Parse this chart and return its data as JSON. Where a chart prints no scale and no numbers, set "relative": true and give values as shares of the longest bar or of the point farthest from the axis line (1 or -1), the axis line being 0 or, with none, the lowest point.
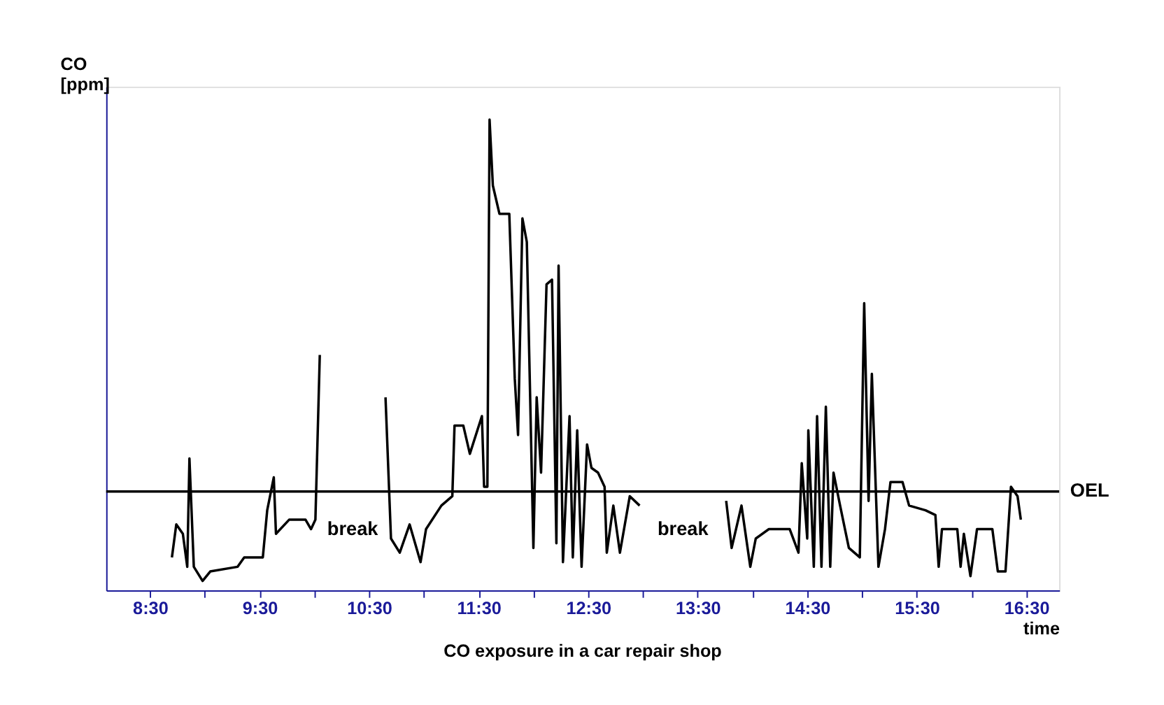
{
  "chart_data": {
    "type": "line",
    "relative": true,
    "title": "CO exposure in a car repair shop",
    "xlabel": "time",
    "ylabel": "CO\n[ppm]",
    "x": [
      8.7,
      8.74,
      8.8,
      8.84,
      8.86,
      8.9,
      8.98,
      9.05,
      9.3,
      9.36,
      9.53,
      9.57,
      9.63,
      9.65,
      9.77,
      9.92,
      9.97,
      10.01,
      10.05,
      10.35,
      10.65,
      10.7,
      10.78,
      10.87,
      10.97,
      11.02,
      11.16,
      11.26,
      11.28,
      11.36,
      11.42,
      11.53,
      11.55,
      11.58,
      11.6,
      11.63,
      11.69,
      11.78,
      11.83,
      11.86,
      11.9,
      11.94,
      12.0,
      12.03,
      12.07,
      12.12,
      12.17,
      12.21,
      12.23,
      12.27,
      12.33,
      12.36,
      12.4,
      12.44,
      12.49,
      12.53,
      12.59,
      12.65,
      12.67,
      12.73,
      12.79,
      12.88,
      12.97,
      13.4,
      13.76,
      13.81,
      13.9,
      13.98,
      14.03,
      14.15,
      14.34,
      14.42,
      14.45,
      14.5,
      14.51,
      14.56,
      14.59,
      14.63,
      14.67,
      14.71,
      14.74,
      14.8,
      14.88,
      14.98,
      15.02,
      15.06,
      15.09,
      15.15,
      15.21,
      15.26,
      15.37,
      15.43,
      15.58,
      15.67,
      15.7,
      15.73,
      15.87,
      15.9,
      15.93,
      15.99,
      16.05,
      16.19,
      16.24,
      16.31,
      16.36,
      16.42,
      16.45
    ],
    "series": [
      {
        "color": "#000000",
        "values": [
          0.07,
          0.14,
          0.12,
          0.05,
          0.28,
          0.05,
          0.02,
          0.04,
          0.05,
          0.07,
          0.07,
          0.17,
          0.24,
          0.12,
          0.15,
          0.15,
          0.13,
          0.15,
          0.5,
          null,
          0.41,
          0.11,
          0.08,
          0.14,
          0.06,
          0.13,
          0.18,
          0.2,
          0.35,
          0.35,
          0.29,
          0.37,
          0.22,
          0.22,
          1.0,
          0.86,
          0.8,
          0.8,
          0.45,
          0.33,
          0.79,
          0.74,
          0.09,
          0.41,
          0.25,
          0.65,
          0.66,
          0.1,
          0.69,
          0.06,
          0.37,
          0.07,
          0.34,
          0.05,
          0.31,
          0.26,
          0.25,
          0.22,
          0.08,
          0.18,
          0.08,
          0.2,
          0.18,
          null,
          0.19,
          0.09,
          0.18,
          0.05,
          0.11,
          0.13,
          0.13,
          0.08,
          0.27,
          0.11,
          0.34,
          0.05,
          0.37,
          0.05,
          0.39,
          0.05,
          0.25,
          0.18,
          0.09,
          0.07,
          0.61,
          0.19,
          0.46,
          0.05,
          0.13,
          0.23,
          0.23,
          0.18,
          0.17,
          0.16,
          0.05,
          0.13,
          0.13,
          0.05,
          0.12,
          0.03,
          0.13,
          0.13,
          0.04,
          0.04,
          0.22,
          0.2,
          0.15
        ]
      }
    ],
    "xlim": [
      8.1,
      16.8
    ],
    "xticks": [
      {
        "value": 8.5,
        "label": "8:30"
      },
      {
        "value": 9,
        "label": null
      },
      {
        "value": 9.5,
        "label": "9:30"
      },
      {
        "value": 10,
        "label": null
      },
      {
        "value": 10.5,
        "label": "10:30"
      },
      {
        "value": 11,
        "label": null
      },
      {
        "value": 11.5,
        "label": "11:30"
      },
      {
        "value": 12,
        "label": null
      },
      {
        "value": 12.5,
        "label": "12:30"
      },
      {
        "value": 13,
        "label": null
      },
      {
        "value": 13.5,
        "label": "13:30"
      },
      {
        "value": 14,
        "label": null
      },
      {
        "value": 14.5,
        "label": "14:30"
      },
      {
        "value": 15,
        "label": null
      },
      {
        "value": 15.5,
        "label": "15:30"
      },
      {
        "value": 16,
        "label": null
      },
      {
        "value": 16.5,
        "label": "16:30"
      }
    ],
    "ref_lines": [
      {
        "axis": "y",
        "value": 0.21,
        "label": "OEL",
        "color": "#000000"
      }
    ],
    "annotations": [
      "break",
      "break"
    ],
    "grid": false,
    "marker": "none",
    "line_style": "solid"
  }
}
